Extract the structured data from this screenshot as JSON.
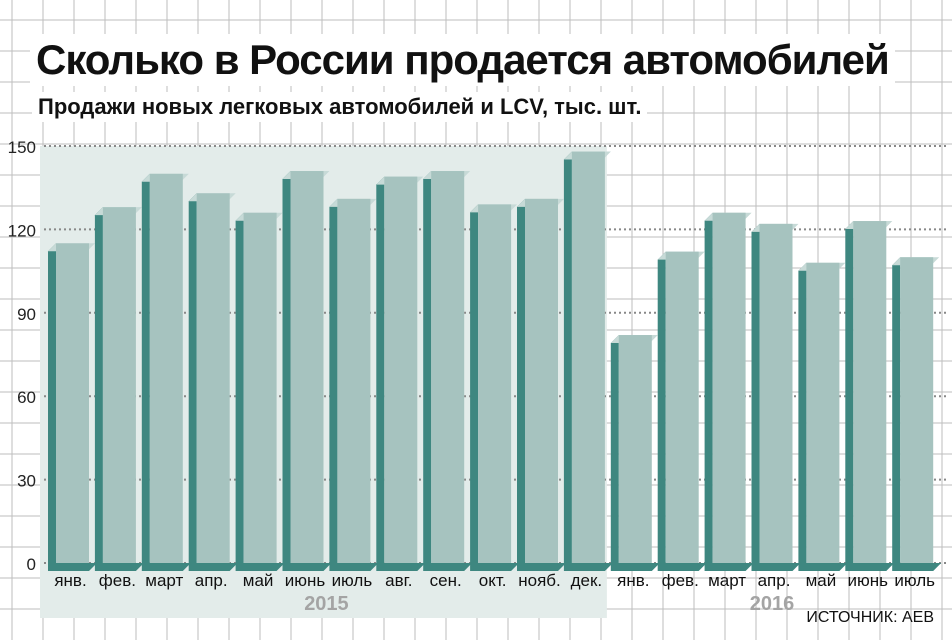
{
  "chart_data": {
    "type": "bar",
    "title": "Сколько в России продается автомобилей",
    "subtitle": "Продажи новых легковых автомобилей и LCV, тыс. шт.",
    "source": "ИСТОЧНИК: АЕВ",
    "ylim": [
      0,
      150
    ],
    "yticks": [
      "0",
      "30",
      "60",
      "90",
      "120",
      "150"
    ],
    "grid": true,
    "categories": [
      "янв.",
      "фев.",
      "март",
      "апр.",
      "май",
      "июнь",
      "июль",
      "авг.",
      "сен.",
      "окт.",
      "нояб.",
      "дек.",
      "янв.",
      "фев.",
      "март",
      "апр.",
      "май",
      "июнь",
      "июль"
    ],
    "values": [
      115,
      128,
      140,
      133,
      126,
      141,
      131,
      139,
      141,
      129,
      131,
      148,
      82,
      112,
      126,
      122,
      108,
      123,
      110
    ],
    "groups": [
      {
        "label": "2015",
        "start": 0,
        "end": 11
      },
      {
        "label": "2016",
        "start": 12,
        "end": 18
      }
    ],
    "colors": {
      "bar_front": "#a6c3bf",
      "bar_side": "#3e8780",
      "highlight": "#e3ecea",
      "grid": "#bdbdbd"
    }
  }
}
